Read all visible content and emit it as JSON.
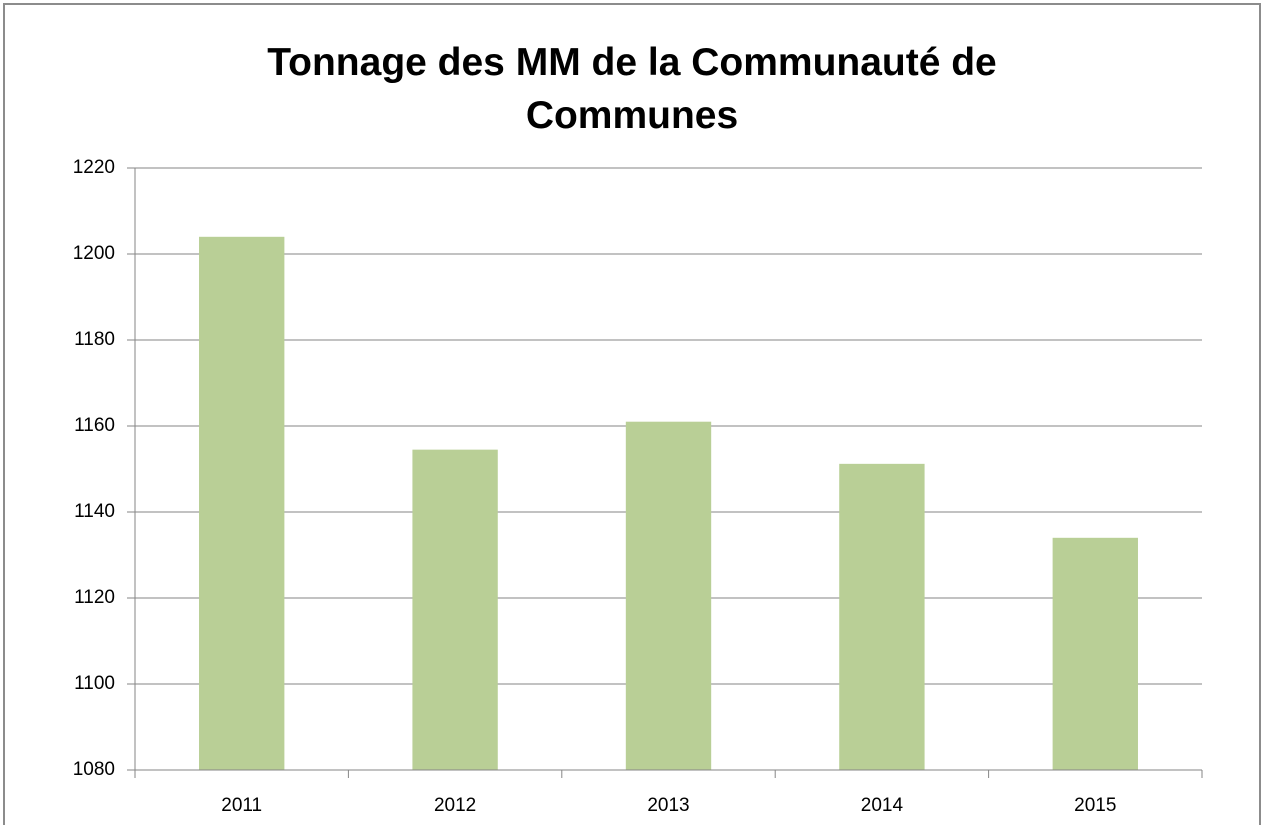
{
  "chart_data": {
    "type": "bar",
    "title": "Tonnage des MM de la Communauté de Communes",
    "categories": [
      "2011",
      "2012",
      "2013",
      "2014",
      "2015"
    ],
    "values": [
      1204,
      1154.5,
      1161,
      1151.2,
      1134
    ],
    "color": "#b9cf96",
    "ylim": [
      1080,
      1220
    ],
    "yticks": [
      1080,
      1100,
      1120,
      1140,
      1160,
      1180,
      1200,
      1220
    ],
    "grid": true
  }
}
